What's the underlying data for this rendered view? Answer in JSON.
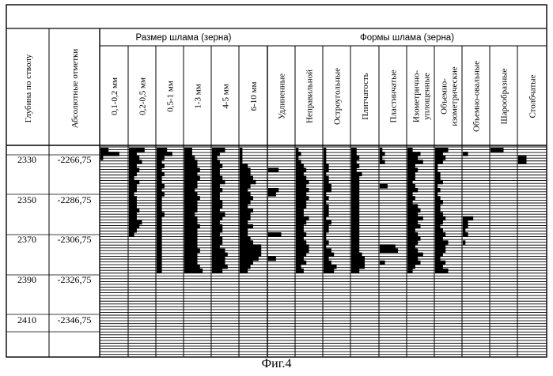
{
  "chart_data": {
    "type": "table",
    "title": "Фиг.4",
    "row_headers": {
      "depth_label": "Глубина по стволу",
      "abs_label": "Абсолютные отметки"
    },
    "group_headers": {
      "size": "Размер шлама (зерна)",
      "shape": "Формы шлама (зерна)"
    },
    "size_columns": [
      "0,1-0,2 мм",
      "0,2-0,5 мм",
      "0,5-1 мм",
      "1-3 мм",
      "4-5 мм",
      "6-10 мм"
    ],
    "shape_columns": [
      "Удлиненные",
      "Неправильной",
      "Остроугольные",
      "Плитчатость",
      "Пластинчатые",
      "Изометрично-уплощенные",
      "Объемно-изометрические",
      "Объемно-овальные",
      "Шарообразные",
      "Столбчатые"
    ],
    "depth_ticks": [
      {
        "depth": "2330",
        "abs": "-2266,75"
      },
      {
        "depth": "2350",
        "abs": "-2286,75"
      },
      {
        "depth": "2370",
        "abs": "-2306,75"
      },
      {
        "depth": "2390",
        "abs": "-2326,75"
      },
      {
        "depth": "2410",
        "abs": "-2346,75"
      }
    ],
    "depth_range": [
      2328,
      2428
    ],
    "sample_interval_m": 2,
    "bar_unit": "relative",
    "series": [
      {
        "name": "0,1-0,2 мм",
        "values": [
          0.3,
          0.7,
          0.1,
          0,
          0,
          0,
          0,
          0,
          0,
          0,
          0,
          0,
          0,
          0,
          0,
          0,
          0,
          0,
          0,
          0,
          0,
          0,
          0,
          0,
          0,
          0,
          0,
          0,
          0,
          0,
          0,
          0,
          0,
          0,
          0
        ]
      },
      {
        "name": "0,2-0,5 мм",
        "values": [
          0.6,
          0.3,
          0.4,
          0.5,
          0.3,
          0.4,
          0.3,
          0.2,
          0.4,
          0.3,
          0.3,
          0.2,
          0.3,
          0.3,
          0.3,
          0.4,
          0.3,
          0.3,
          0.5,
          0.4,
          0.3,
          0.2,
          0,
          0,
          0,
          0,
          0,
          0,
          0,
          0,
          0,
          0,
          0,
          0,
          0
        ]
      },
      {
        "name": "0,5-1 мм",
        "values": [
          0.4,
          0.6,
          0.3,
          0.2,
          0.3,
          0.2,
          0.3,
          0.2,
          0.2,
          0.3,
          0.2,
          0.3,
          0.2,
          0.2,
          0.2,
          0.2,
          0.3,
          0.2,
          0.2,
          0.2,
          0.2,
          0.2,
          0.2,
          0.2,
          0.2,
          0.2,
          0.2,
          0.2,
          0.2,
          0.2,
          0.2,
          0,
          0,
          0,
          0
        ]
      },
      {
        "name": "1-3 мм",
        "values": [
          0.3,
          0.3,
          0.4,
          0.5,
          0.5,
          0.6,
          0.5,
          0.6,
          0.5,
          0.5,
          0.4,
          0.5,
          0.6,
          0.5,
          0.5,
          0.5,
          0.4,
          0.5,
          0.5,
          0.6,
          0.5,
          0.5,
          0.5,
          0.5,
          0.5,
          0.6,
          0.5,
          0.5,
          0.5,
          0.6,
          0.7,
          0,
          0,
          0,
          0
        ]
      },
      {
        "name": "4-5 мм",
        "values": [
          0.5,
          0.3,
          0.2,
          0.3,
          0.4,
          0.3,
          0.3,
          0.4,
          0.5,
          0.3,
          0.4,
          0.3,
          0.3,
          0.4,
          0.4,
          0.3,
          0.5,
          0.4,
          0.3,
          0.4,
          0.4,
          0.3,
          0.4,
          0.4,
          0.3,
          0.5,
          0.6,
          0.5,
          0.5,
          0.6,
          0.4,
          0,
          0,
          0,
          0
        ]
      },
      {
        "name": "6-10 мм",
        "values": [
          0.1,
          0.1,
          0.1,
          0.1,
          0.3,
          0.4,
          0.4,
          0.5,
          0.6,
          0.4,
          0.3,
          0.4,
          0.5,
          0.4,
          0.3,
          0.5,
          0.4,
          0.4,
          0.3,
          0.5,
          0.3,
          0.3,
          0.4,
          0.5,
          0.8,
          0.8,
          0.8,
          0.7,
          0.5,
          0.4,
          0.3,
          0,
          0,
          0,
          0
        ]
      },
      {
        "name": "Удлиненные",
        "values": [
          0,
          0,
          0,
          0,
          0,
          0.4,
          0,
          0,
          0,
          0,
          0.4,
          0.3,
          0,
          0,
          0,
          0,
          0,
          0,
          0,
          0,
          0,
          0.5,
          0,
          0,
          0,
          0,
          0,
          0.3,
          0,
          0,
          0,
          0,
          0,
          0,
          0
        ]
      },
      {
        "name": "Неправильной",
        "values": [
          0.1,
          0.2,
          0.1,
          0.2,
          0.3,
          0.4,
          0.3,
          0.4,
          0.5,
          0.4,
          0.5,
          0.4,
          0.5,
          0.4,
          0.4,
          0.3,
          0.3,
          0.5,
          0.4,
          0.3,
          0.3,
          0.4,
          0.3,
          0.4,
          0.5,
          0.5,
          0.4,
          0.3,
          0.4,
          0.2,
          0.3,
          0,
          0,
          0,
          0
        ]
      },
      {
        "name": "Остроугольные",
        "values": [
          0.1,
          0.1,
          0.1,
          0.1,
          0.2,
          0.2,
          0.1,
          0.2,
          0.2,
          0.3,
          0.3,
          0.1,
          0.2,
          0.1,
          0.2,
          0.2,
          0.2,
          0.1,
          0.3,
          0.2,
          0.2,
          0.1,
          0.1,
          0.2,
          0.1,
          0.3,
          0.4,
          0.2,
          0.3,
          0.5,
          0.4,
          0,
          0,
          0,
          0
        ]
      },
      {
        "name": "Плитчатость",
        "values": [
          0.2,
          0.2,
          0.3,
          0.2,
          0.3,
          0.2,
          0.4,
          0.3,
          0.3,
          0.3,
          0.3,
          0.3,
          0.3,
          0.3,
          0.3,
          0.3,
          0.3,
          0.3,
          0.3,
          0.3,
          0.3,
          0.3,
          0.3,
          0.3,
          0.3,
          0.3,
          0.4,
          0.5,
          0.5,
          0.5,
          0.3,
          0,
          0,
          0,
          0
        ]
      },
      {
        "name": "Пластинчатые",
        "values": [
          0.1,
          0.2,
          0.1,
          0.2,
          0,
          0,
          0,
          0,
          0,
          0.3,
          0,
          0,
          0,
          0,
          0,
          0,
          0,
          0,
          0,
          0,
          0,
          0,
          0,
          0,
          0.6,
          0.7,
          0,
          0,
          0.2,
          0,
          0,
          0,
          0,
          0,
          0,
          0,
          0
        ]
      },
      {
        "name": "Изометрично-уплощенные",
        "values": [
          0.2,
          0.5,
          0.4,
          0.6,
          0.3,
          0.4,
          0.3,
          0.3,
          0.2,
          0.3,
          0.4,
          0.2,
          0.3,
          0.2,
          0.4,
          0.5,
          0.4,
          0.6,
          0.4,
          0.5,
          0.3,
          0.4,
          0.5,
          0.4,
          0.3,
          0.4,
          0.6,
          0.4,
          0.5,
          0.3,
          0.2,
          0,
          0,
          0,
          0
        ]
      },
      {
        "name": "Объемно-изометрические",
        "values": [
          0.5,
          0.3,
          0.4,
          0.3,
          0.1,
          0.1,
          0.2,
          0.2,
          0.3,
          0.1,
          0.2,
          0.1,
          0.2,
          0.3,
          0.2,
          0.2,
          0.3,
          0.4,
          0.3,
          0.2,
          0.3,
          0.4,
          0.3,
          0.5,
          0.4,
          0.4,
          0.3,
          0.2,
          0.4,
          0.3,
          0.5,
          0,
          0,
          0,
          0
        ]
      },
      {
        "name": "Объемно-овальные",
        "values": [
          0,
          0.2,
          0,
          0,
          0,
          0,
          0,
          0,
          0,
          0,
          0,
          0,
          0,
          0,
          0,
          0,
          0,
          0.4,
          0.2,
          0.2,
          0.1,
          0.2,
          0,
          0.1,
          0,
          0,
          0,
          0,
          0,
          0,
          0,
          0,
          0,
          0,
          0
        ]
      },
      {
        "name": "Шарообразные",
        "values": [
          0.5,
          0,
          0,
          0,
          0,
          0,
          0,
          0,
          0,
          0,
          0,
          0,
          0,
          0,
          0,
          0,
          0,
          0,
          0,
          0,
          0,
          0,
          0,
          0,
          0,
          0,
          0,
          0,
          0,
          0,
          0,
          0,
          0,
          0,
          0
        ]
      },
      {
        "name": "Столбчатые",
        "values": [
          0,
          0,
          0.3,
          0.3,
          0,
          0,
          0,
          0,
          0,
          0,
          0,
          0,
          0,
          0,
          0,
          0,
          0,
          0,
          0,
          0,
          0,
          0,
          0,
          0,
          0,
          0,
          0,
          0,
          0,
          0,
          0,
          0,
          0,
          0,
          0
        ]
      }
    ]
  }
}
